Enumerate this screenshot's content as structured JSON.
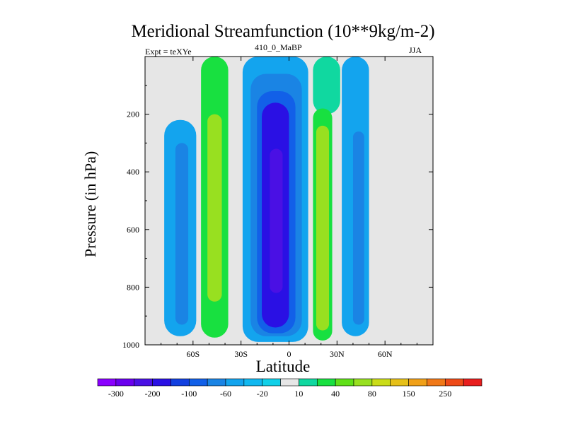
{
  "chart_data": {
    "type": "heatmap",
    "title": "Meridional Streamfunction (10**9kg/m-2)",
    "left_string": "Expt = teXYe",
    "center_string": "410_0_MaBP",
    "right_string": "JJA",
    "xlabel": "Latitude",
    "ylabel": "Pressure (in hPa)",
    "xlim": [
      -90,
      90
    ],
    "ylim": [
      1000,
      0
    ],
    "x_ticks": [
      {
        "value": -60,
        "label": "60S"
      },
      {
        "value": -30,
        "label": "30S"
      },
      {
        "value": 0,
        "label": "0"
      },
      {
        "value": 30,
        "label": "30N"
      },
      {
        "value": 60,
        "label": "60N"
      }
    ],
    "y_ticks": [
      {
        "value": 200,
        "label": "200"
      },
      {
        "value": 400,
        "label": "400"
      },
      {
        "value": 600,
        "label": "600"
      },
      {
        "value": 800,
        "label": "800"
      },
      {
        "value": 1000,
        "label": "1000"
      }
    ],
    "missing_color": "#e6e6e6",
    "colorbar": {
      "colors": [
        "#8a00ff",
        "#6a00ee",
        "#4a10e4",
        "#2a10e4",
        "#1240e0",
        "#1260e8",
        "#1a84e4",
        "#13a4ee",
        "#11b8f0",
        "#11d0e8",
        "#e6e6e6",
        "#10d8a0",
        "#18e040",
        "#60e018",
        "#98e020",
        "#cadc18",
        "#e6c018",
        "#f0a018",
        "#f07818",
        "#ee4a18",
        "#e81e1e"
      ],
      "labels": [
        {
          "index": 1,
          "text": "-300"
        },
        {
          "index": 3,
          "text": "-200"
        },
        {
          "index": 5,
          "text": "-100"
        },
        {
          "index": 7,
          "text": "-60"
        },
        {
          "index": 9,
          "text": "-20"
        },
        {
          "index": 11,
          "text": "10"
        },
        {
          "index": 13,
          "text": "40"
        },
        {
          "index": 15,
          "text": "80"
        },
        {
          "index": 17,
          "text": "150"
        },
        {
          "index": 19,
          "text": "250"
        }
      ]
    },
    "contour_regions": [
      {
        "name": "sh-outer-cell",
        "value": -15,
        "lat": [
          -78,
          -58
        ],
        "p": [
          220,
          970
        ],
        "color": "#13a4ee"
      },
      {
        "name": "sh-outer-cell-core",
        "value": -30,
        "lat": [
          -71,
          -63
        ],
        "p": [
          300,
          930
        ],
        "color": "#1a84e4"
      },
      {
        "name": "sh-ferrel-cell",
        "value": 35,
        "lat": [
          -55,
          -38
        ],
        "p": [
          0,
          975
        ],
        "color": "#18e040"
      },
      {
        "name": "sh-ferrel-cell-core",
        "value": 70,
        "lat": [
          -51,
          -42
        ],
        "p": [
          200,
          850
        ],
        "color": "#98e020"
      },
      {
        "name": "hadley-cell-outer",
        "value": -15,
        "lat": [
          -29,
          12
        ],
        "p": [
          0,
          990
        ],
        "color": "#13a4ee"
      },
      {
        "name": "hadley-cell-mid",
        "value": -40,
        "lat": [
          -24,
          8
        ],
        "p": [
          60,
          970
        ],
        "color": "#1a84e4"
      },
      {
        "name": "hadley-cell-inner",
        "value": -80,
        "lat": [
          -20,
          4
        ],
        "p": [
          120,
          960
        ],
        "color": "#1260e8"
      },
      {
        "name": "hadley-cell-core",
        "value": -150,
        "lat": [
          -17,
          0
        ],
        "p": [
          160,
          940
        ],
        "color": "#2a10e4"
      },
      {
        "name": "hadley-cell-peak",
        "value": -250,
        "lat": [
          -12,
          -4
        ],
        "p": [
          320,
          820
        ],
        "color": "#4a10e4"
      },
      {
        "name": "nh-cell-top",
        "value": 5,
        "lat": [
          15,
          32
        ],
        "p": [
          0,
          200
        ],
        "color": "#10d8a0"
      },
      {
        "name": "nh-cell",
        "value": 35,
        "lat": [
          15,
          27
        ],
        "p": [
          180,
          985
        ],
        "color": "#18e040"
      },
      {
        "name": "nh-cell-core",
        "value": 70,
        "lat": [
          17,
          25
        ],
        "p": [
          240,
          950
        ],
        "color": "#98e020"
      },
      {
        "name": "nh-outer-cell",
        "value": -15,
        "lat": [
          33,
          50
        ],
        "p": [
          0,
          970
        ],
        "color": "#13a4ee"
      },
      {
        "name": "nh-outer-cell-core",
        "value": -30,
        "lat": [
          40,
          47
        ],
        "p": [
          260,
          930
        ],
        "color": "#1a84e4"
      }
    ]
  }
}
